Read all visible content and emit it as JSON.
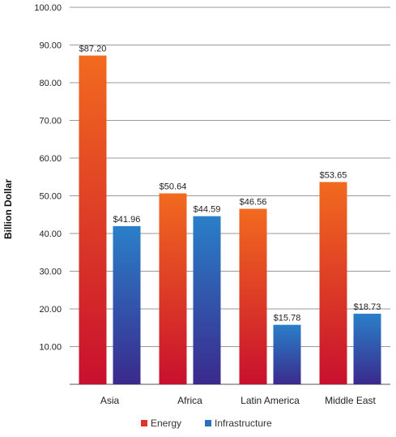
{
  "chart_data": {
    "type": "bar",
    "categories": [
      "Asia",
      "Africa",
      "Latin America",
      "Middle East"
    ],
    "series": [
      {
        "name": "Energy",
        "values": [
          87.2,
          50.64,
          46.56,
          53.65
        ],
        "labels": [
          "$87.20",
          "$50.64",
          "$46.56",
          "$53.65"
        ]
      },
      {
        "name": "Infrastructure",
        "values": [
          41.96,
          44.59,
          15.78,
          18.73
        ],
        "labels": [
          "$41.96",
          "$44.59",
          "$15.78",
          "$18.73"
        ]
      }
    ],
    "ylabel": "Billion Dollar",
    "xlabel": "",
    "ylim": [
      0,
      100
    ],
    "yticks": [
      "10.00",
      "20.00",
      "30.00",
      "40.00",
      "50.00",
      "60.00",
      "70.00",
      "80.00",
      "90.00",
      "100.00"
    ],
    "ytick_values": [
      10,
      20,
      30,
      40,
      50,
      60,
      70,
      80,
      90,
      100
    ],
    "grid": true,
    "legend": "bottom-center",
    "colors": {
      "energy_top": "#f26a1f",
      "energy_bottom": "#c8102e",
      "infra_top": "#2a7fc9",
      "infra_bottom": "#3a2a8c",
      "grid": "#999999"
    }
  }
}
